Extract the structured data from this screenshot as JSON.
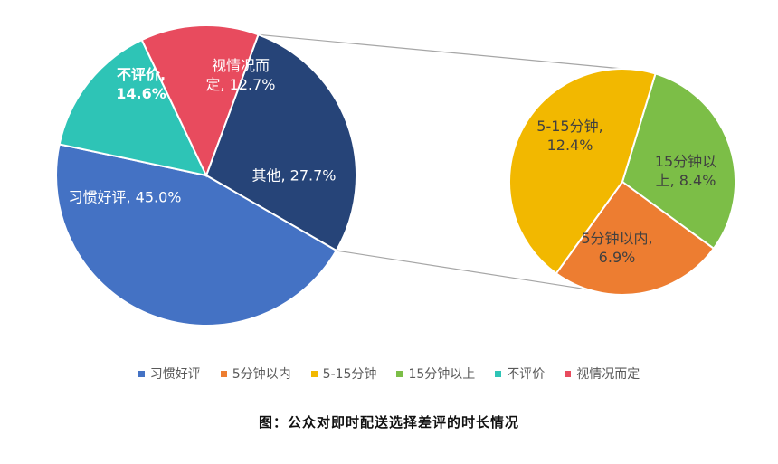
{
  "chart_data": {
    "type": "pie",
    "subtype": "pie-of-pie",
    "main_pie": [
      {
        "name": "习惯好评",
        "label_lines": [
          "习惯好评, 45.0%"
        ],
        "value": 45.0,
        "color": "#4472C4",
        "label_color": "#ffffff",
        "bold": false
      },
      {
        "name": "不评价",
        "label_lines": [
          "不评价,",
          "14.6%"
        ],
        "value": 14.6,
        "color": "#2EC4B6",
        "label_color": "#ffffff",
        "bold": true
      },
      {
        "name": "视情况而定",
        "label_lines": [
          "视情况而",
          "定, 12.7%"
        ],
        "value": 12.7,
        "color": "#E84B5E",
        "label_color": "#ffffff",
        "bold": false
      },
      {
        "name": "其他",
        "label_lines": [
          "其他, 27.7%"
        ],
        "value": 27.7,
        "color": "#264478",
        "label_color": "#ffffff",
        "bold": false
      }
    ],
    "secondary_pie": [
      {
        "name": "5-15分钟",
        "label_lines": [
          "5-15分钟,",
          "12.4%"
        ],
        "value": 12.4,
        "color": "#F2B800",
        "label_color": "#404040",
        "bold": false
      },
      {
        "name": "15分钟以上",
        "label_lines": [
          "15分钟以",
          "上, 8.4%"
        ],
        "value": 8.4,
        "color": "#7CBE47",
        "label_color": "#404040",
        "bold": false
      },
      {
        "name": "5分钟以内",
        "label_lines": [
          "5分钟以内,",
          "6.9%"
        ],
        "value": 6.9,
        "color": "#ED7D31",
        "label_color": "#404040",
        "bold": false
      }
    ],
    "legend": [
      {
        "label": "习惯好评",
        "color": "#4472C4"
      },
      {
        "label": "5分钟以内",
        "color": "#ED7D31"
      },
      {
        "label": "5-15分钟",
        "color": "#F2B800"
      },
      {
        "label": "15分钟以上",
        "color": "#7CBE47"
      },
      {
        "label": "不评价",
        "color": "#2EC4B6"
      },
      {
        "label": "视情况而定",
        "color": "#E84B5E"
      }
    ],
    "legend_position": "bottom",
    "caption": "图：公众对即时配送选择差评的时长情况"
  }
}
